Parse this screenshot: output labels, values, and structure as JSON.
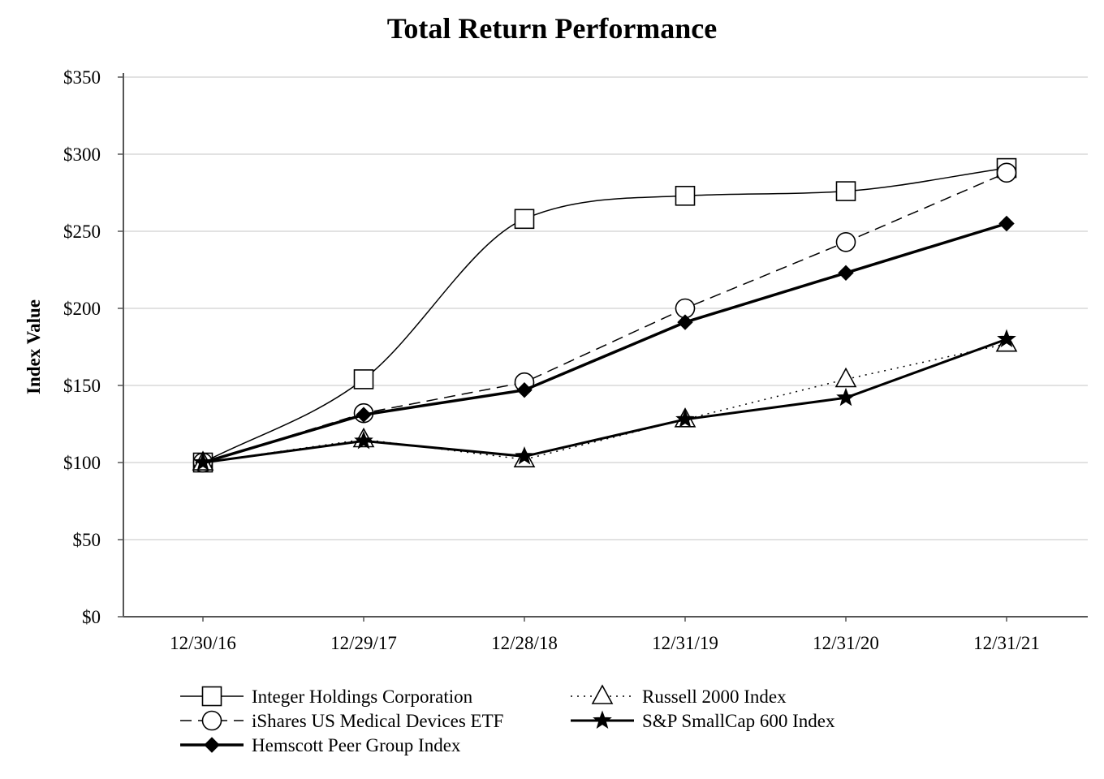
{
  "chart_data": {
    "type": "line",
    "title": "Total Return Performance",
    "ylabel": "Index Value",
    "xlabel": "",
    "categories": [
      "12/30/16",
      "12/29/17",
      "12/28/18",
      "12/31/19",
      "12/31/20",
      "12/31/21"
    ],
    "ylim": [
      0,
      350
    ],
    "yticks": [
      0,
      50,
      100,
      150,
      200,
      250,
      300,
      350
    ],
    "ytick_labels": [
      "$0",
      "$50",
      "$100",
      "$150",
      "$200",
      "$250",
      "$300",
      "$350"
    ],
    "grid": true,
    "legend_position": "bottom",
    "series": [
      {
        "name": "Integer Holdings Corporation",
        "values": [
          100,
          154,
          258,
          273,
          276,
          291
        ],
        "marker": "square",
        "line": "solid",
        "smooth": true,
        "width": 1.5
      },
      {
        "name": "iShares US Medical Devices ETF",
        "values": [
          100,
          132,
          152,
          200,
          243,
          288
        ],
        "marker": "circle",
        "line": "dashed",
        "smooth": false,
        "width": 1.5
      },
      {
        "name": "Hemscott Peer Group Index",
        "values": [
          100,
          131,
          147,
          191,
          223,
          255
        ],
        "marker": "diamond",
        "line": "solid",
        "smooth": false,
        "width": 3.5
      },
      {
        "name": "Russell 2000 Index",
        "values": [
          100,
          115,
          102,
          128,
          154,
          177
        ],
        "marker": "triangle",
        "line": "dotted",
        "smooth": false,
        "width": 1.5
      },
      {
        "name": "S&P SmallCap 600 Index",
        "values": [
          100,
          114,
          104,
          128,
          142,
          180
        ],
        "marker": "star",
        "line": "solid",
        "smooth": false,
        "width": 3
      }
    ]
  }
}
